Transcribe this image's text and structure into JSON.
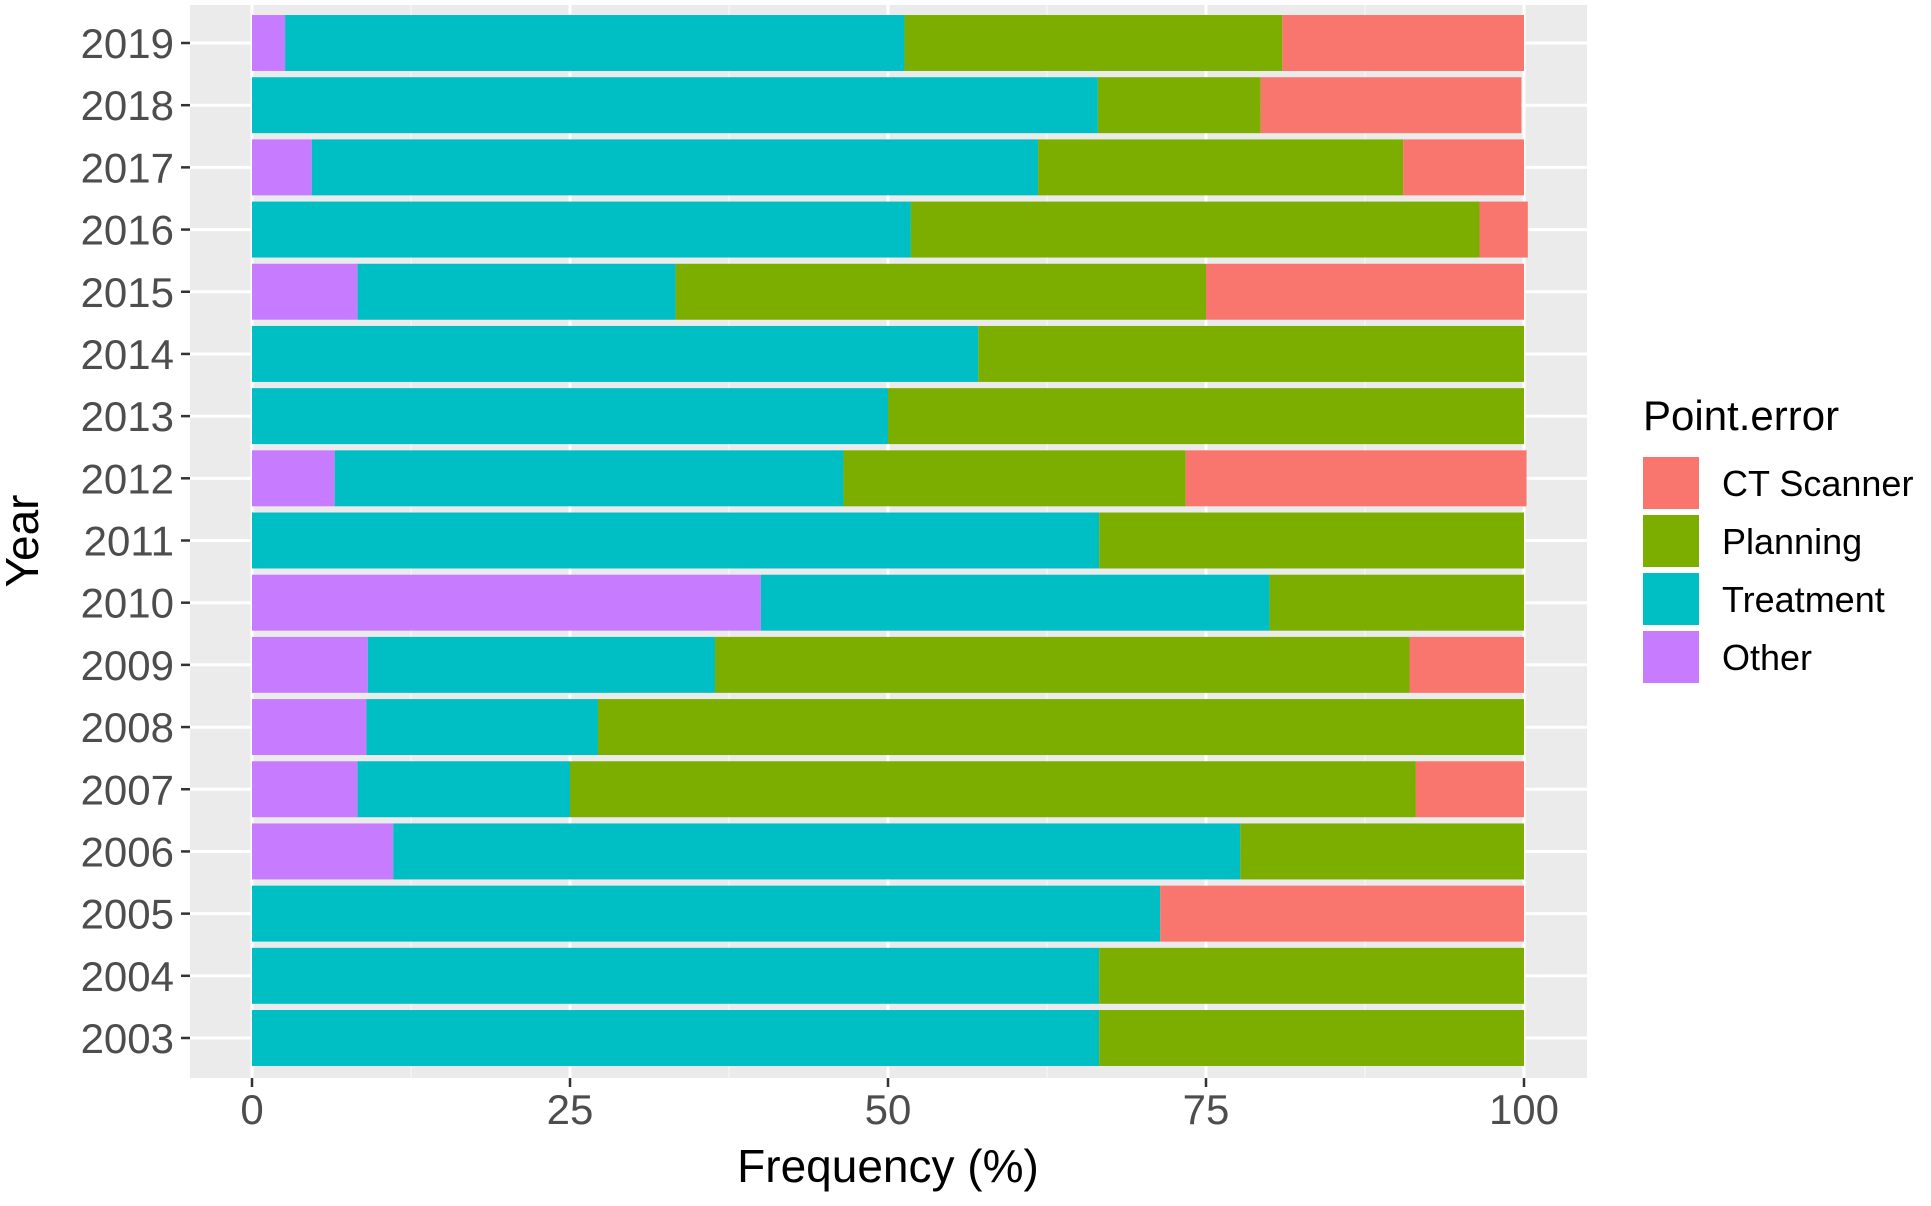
{
  "chart_data": {
    "type": "bar",
    "orientation": "horizontal",
    "stacked": true,
    "xlabel": "Frequency (%)",
    "ylabel": "Year",
    "xlim": [
      0,
      100
    ],
    "xticks": [
      0,
      25,
      50,
      75,
      100
    ],
    "grid": true,
    "legend_position": "right",
    "legend_title": "Point.error",
    "categories": [
      "2019",
      "2018",
      "2017",
      "2016",
      "2015",
      "2014",
      "2013",
      "2012",
      "2011",
      "2010",
      "2009",
      "2008",
      "2007",
      "2006",
      "2005",
      "2004",
      "2003"
    ],
    "series": [
      {
        "name": "Other",
        "color": "#C77CFF",
        "values": [
          2.6,
          0,
          4.7,
          0,
          8.3,
          0,
          0,
          6.5,
          0,
          40.0,
          9.1,
          9.0,
          8.3,
          11.1,
          0,
          0,
          0
        ]
      },
      {
        "name": "Treatment",
        "color": "#00BFC4",
        "values": [
          48.7,
          66.5,
          57.1,
          51.8,
          25.0,
          57.1,
          50.0,
          40.0,
          66.6,
          40.0,
          27.3,
          18.2,
          16.7,
          66.6,
          71.4,
          66.6,
          66.6
        ]
      },
      {
        "name": "Planning",
        "color": "#7CAE00",
        "values": [
          29.7,
          12.8,
          28.7,
          44.7,
          41.7,
          42.9,
          50.0,
          26.9,
          33.4,
          20.0,
          54.6,
          72.8,
          66.5,
          22.3,
          0,
          33.4,
          33.4
        ]
      },
      {
        "name": "CT Scanner",
        "color": "#F8766D",
        "values": [
          19.0,
          20.5,
          9.5,
          3.8,
          25.0,
          0,
          0,
          26.8,
          0,
          0,
          9.0,
          0,
          8.5,
          0,
          28.6,
          0,
          0
        ]
      }
    ],
    "legend_order": [
      "CT Scanner",
      "Planning",
      "Treatment",
      "Other"
    ]
  }
}
